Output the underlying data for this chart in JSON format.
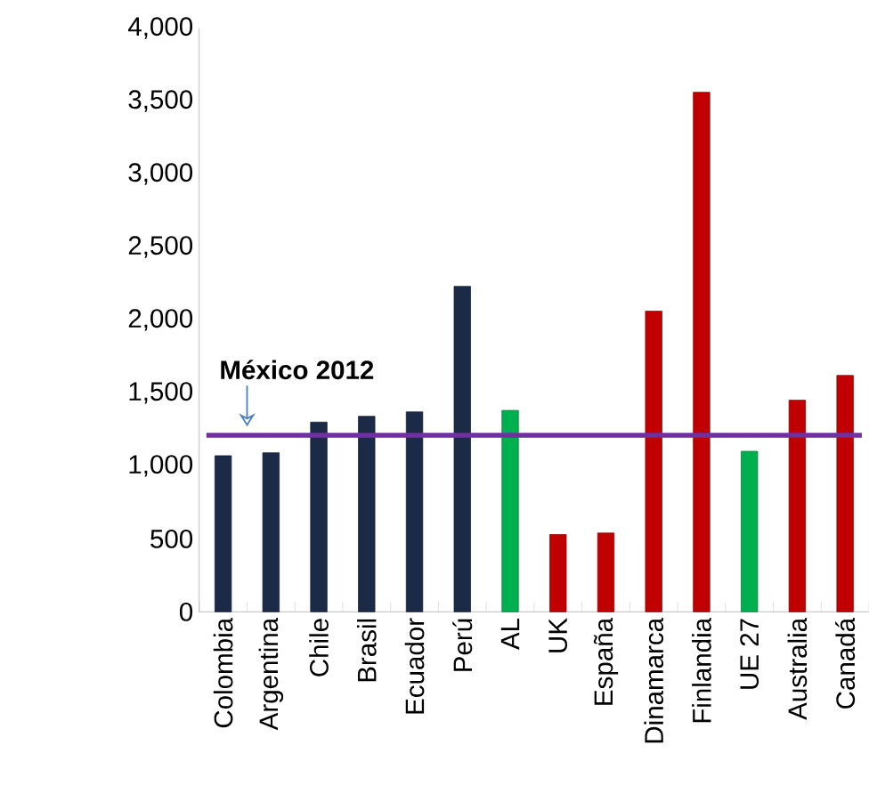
{
  "chart_data": {
    "type": "bar",
    "categories": [
      "Colombia",
      "Argentina",
      "Chile",
      "Brasil",
      "Ecuador",
      "Perú",
      "AL",
      "UK",
      "España",
      "Dinamarca",
      "Finlandia",
      "UE 27",
      "Australia",
      "Canadá"
    ],
    "values": [
      1070,
      1090,
      1300,
      1340,
      1370,
      2230,
      1380,
      530,
      540,
      2060,
      3560,
      1100,
      1450,
      1620
    ],
    "colors": [
      "#1b2a47",
      "#1b2a47",
      "#1b2a47",
      "#1b2a47",
      "#1b2a47",
      "#1b2a47",
      "#00b050",
      "#c00000",
      "#c00000",
      "#c00000",
      "#c00000",
      "#00b050",
      "#c00000",
      "#c00000"
    ],
    "ylim": [
      0,
      4000
    ],
    "yticks": [
      0,
      500,
      {
        "value": 1000,
        "label": "1,000"
      },
      {
        "value": 1500,
        "label": "1,500"
      },
      {
        "value": 2000,
        "label": "2,000"
      },
      {
        "value": 2500,
        "label": "2,500"
      },
      {
        "value": 3000,
        "label": "3,000"
      },
      {
        "value": 3500,
        "label": "3,500"
      },
      {
        "value": 4000,
        "label": "4,000"
      }
    ],
    "ref_lines": [
      {
        "axis": "y",
        "value": 1210,
        "label": "México 2012",
        "color": "#7030a0"
      }
    ],
    "grid": false
  }
}
